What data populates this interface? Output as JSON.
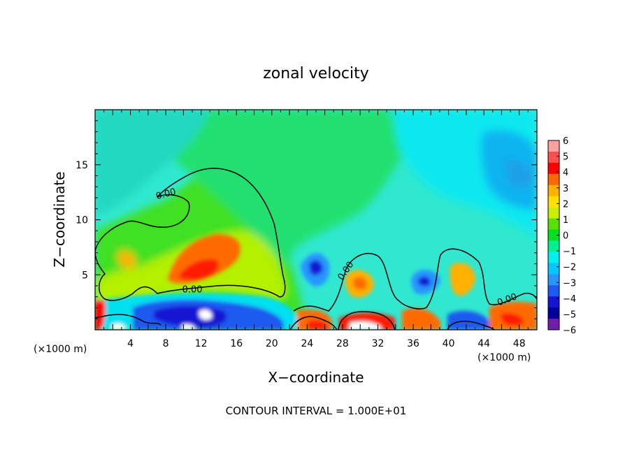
{
  "chart_data": {
    "type": "heatmap",
    "title": "zonal velocity",
    "xlabel": "X−coordinate",
    "ylabel": "Z−coordinate",
    "x_unit_left": "(×1000 m)",
    "x_unit_right": "(×1000 m)",
    "footer": "CONTOUR INTERVAL = 1.000E+01",
    "xlim": [
      0,
      50
    ],
    "ylim": [
      0,
      20
    ],
    "xticks": [
      4,
      8,
      12,
      16,
      20,
      24,
      28,
      32,
      36,
      40,
      44,
      48
    ],
    "yticks": [
      5,
      10,
      15
    ],
    "colorbar": {
      "range": [
        -6,
        6
      ],
      "tick_labels": [
        "6",
        "5",
        "4",
        "3",
        "2",
        "1",
        "0",
        "−1",
        "−2",
        "−3",
        "−4",
        "−5",
        "−6"
      ],
      "colors": [
        "#ffa0a0",
        "#ff5050",
        "#ff0000",
        "#ff6a00",
        "#ffb000",
        "#ffe000",
        "#c8f000",
        "#5ae000",
        "#00e020",
        "#00f090",
        "#00f0f0",
        "#00c8ff",
        "#2896ff",
        "#1e5af0",
        "#1414d2",
        "#0000a0",
        "#6e1eaa"
      ]
    },
    "contour_labels": [
      {
        "text": "0.00",
        "x": 8.0,
        "z": 12.4
      },
      {
        "text": "0.00",
        "x": 11.0,
        "z": 3.7
      },
      {
        "text": "0.00",
        "x": 28.3,
        "z": 5.4
      },
      {
        "text": "0.00",
        "x": 46.6,
        "z": 2.8
      }
    ]
  }
}
